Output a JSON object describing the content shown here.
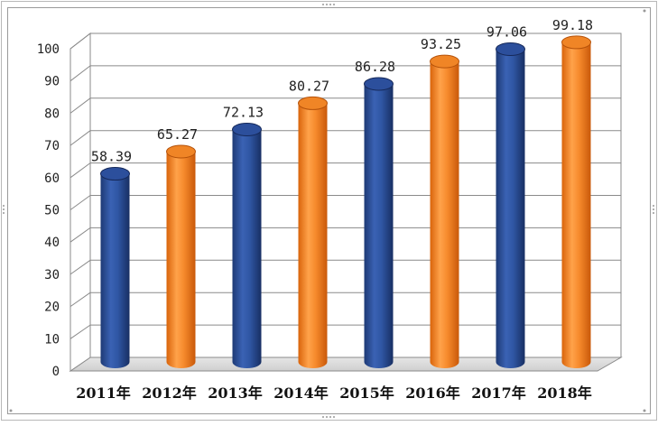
{
  "chart_data": {
    "type": "bar",
    "categories": [
      "2011年",
      "2012年",
      "2013年",
      "2014年",
      "2015年",
      "2016年",
      "2017年",
      "2018年"
    ],
    "values": [
      58.39,
      65.27,
      72.13,
      80.27,
      86.28,
      93.25,
      97.06,
      99.18
    ],
    "value_labels": [
      "58.39",
      "65.27",
      "72.13",
      "80.27",
      "86.28",
      "93.25",
      "97.06",
      "99.18"
    ],
    "yticks": [
      "0",
      "10",
      "20",
      "30",
      "40",
      "50",
      "60",
      "70",
      "80",
      "90",
      "100"
    ],
    "ylim": [
      0,
      100
    ],
    "grid": true,
    "style": "3d-cylinder",
    "colors": [
      "#2a4d96",
      "#f0801f"
    ]
  }
}
